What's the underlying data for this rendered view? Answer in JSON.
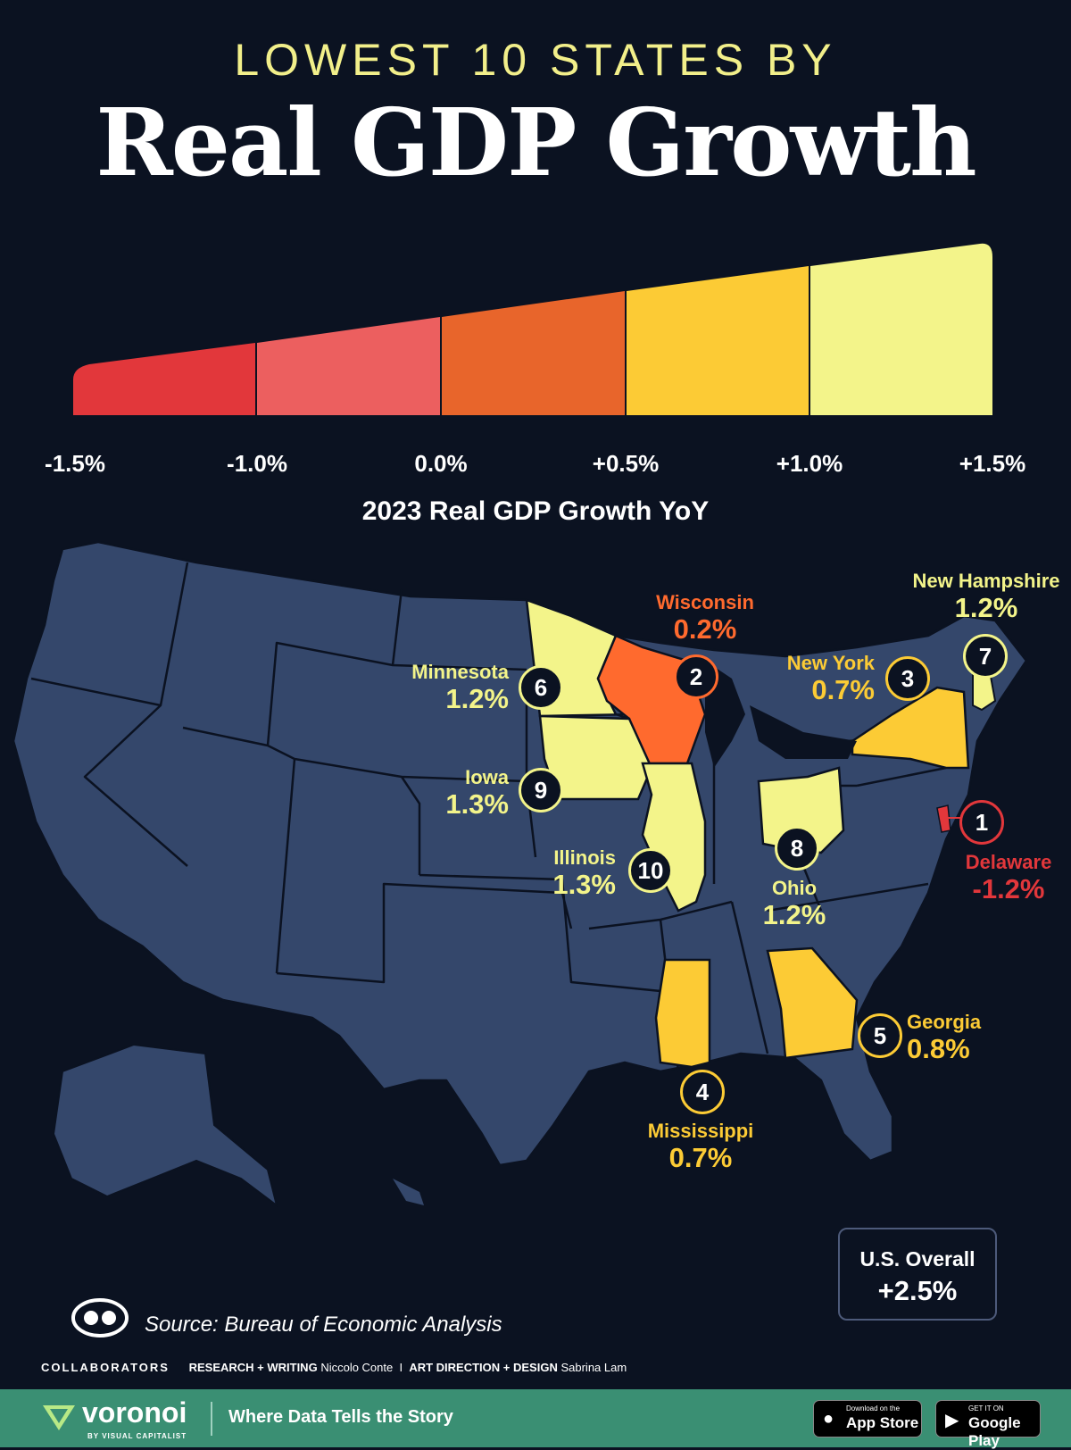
{
  "header": {
    "kicker": "LOWEST 10 STATES BY",
    "title": "Real GDP Growth"
  },
  "legend": {
    "ticks": [
      "-1.5%",
      "-1.0%",
      "0.0%",
      "+0.5%",
      "+1.0%",
      "+1.5%"
    ],
    "colors": [
      "#e2373b",
      "#ec5f5f",
      "#e8652b",
      "#fccb35",
      "#f3f48a"
    ],
    "axis_title": "2023 Real GDP Growth YoY"
  },
  "states": [
    {
      "rank": "1",
      "name": "Delaware",
      "value": "-1.2%",
      "color": "#e2373b"
    },
    {
      "rank": "2",
      "name": "Wisconsin",
      "value": "0.2%",
      "color": "#ff6a2e"
    },
    {
      "rank": "3",
      "name": "New York",
      "value": "0.7%",
      "color": "#fccb35"
    },
    {
      "rank": "4",
      "name": "Mississippi",
      "value": "0.7%",
      "color": "#fccb35"
    },
    {
      "rank": "5",
      "name": "Georgia",
      "value": "0.8%",
      "color": "#fccb35"
    },
    {
      "rank": "6",
      "name": "Minnesota",
      "value": "1.2%",
      "color": "#f3f48a"
    },
    {
      "rank": "7",
      "name": "New Hampshire",
      "value": "1.2%",
      "color": "#f3f48a"
    },
    {
      "rank": "8",
      "name": "Ohio",
      "value": "1.2%",
      "color": "#f3f48a"
    },
    {
      "rank": "9",
      "name": "Iowa",
      "value": "1.3%",
      "color": "#f3f48a"
    },
    {
      "rank": "10",
      "name": "Illinois",
      "value": "1.3%",
      "color": "#f3f48a"
    }
  ],
  "overall": {
    "label": "U.S. Overall",
    "value": "+2.5%"
  },
  "source": "Source: Bureau of Economic Analysis",
  "credits": {
    "heading": "COLLABORATORS",
    "research_label": "RESEARCH + WRITING",
    "research_name": "Niccolo Conte",
    "separator": "I",
    "design_label": "ART DIRECTION + DESIGN",
    "design_name": "Sabrina Lam"
  },
  "footer": {
    "brand": "voronoi",
    "brand_sub": "BY VISUAL CAPITALIST",
    "tagline": "Where Data Tells the Story",
    "appstore_small": "Download on the",
    "appstore_big": "App Store",
    "googleplay_small": "GET IT ON",
    "googleplay_big": "Google Play"
  },
  "colors": {
    "background": "#0b1221",
    "map_fill": "#34476b",
    "map_stroke": "#0b1221",
    "footer": "#3a8f73"
  }
}
